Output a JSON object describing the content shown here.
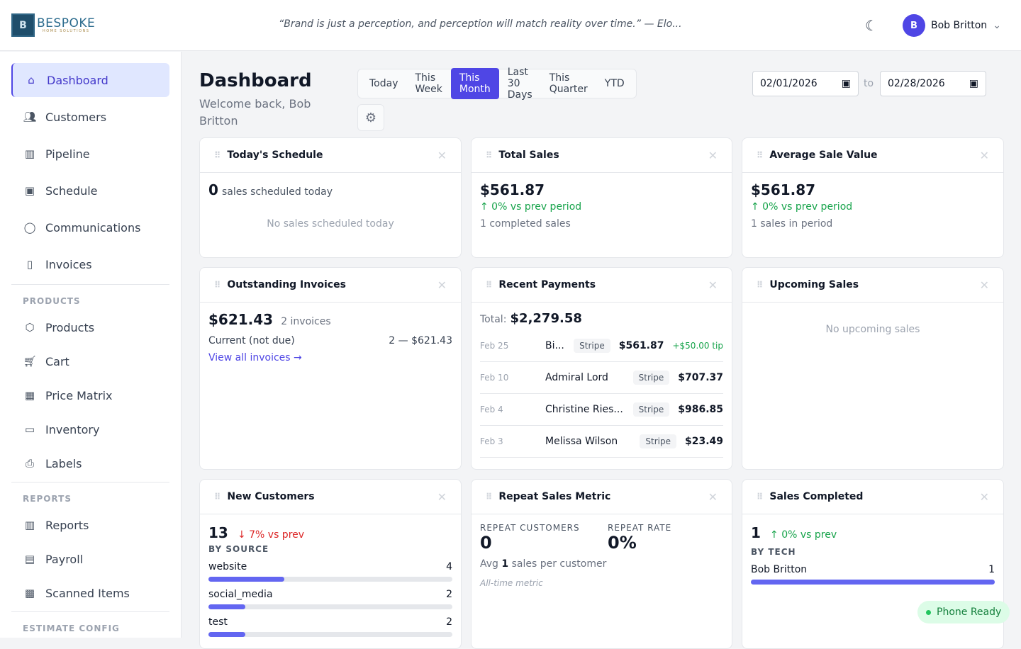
{
  "header": {
    "logo_main": "BESPOKE",
    "logo_sub": "HOME SOLUTIONS",
    "quote": "“Brand is just a perception, and perception will match reality over time.” — Elo...",
    "user_initial": "B",
    "user_name": "Bob Britton"
  },
  "sidebar": {
    "items": [
      "Dashboard",
      "Customers",
      "Pipeline",
      "Schedule",
      "Communications",
      "Invoices"
    ],
    "products_heading": "PRODUCTS",
    "products": [
      "Products",
      "Cart",
      "Price Matrix",
      "Inventory",
      "Labels"
    ],
    "reports_heading": "REPORTS",
    "reports": [
      "Reports",
      "Payroll",
      "Scanned Items"
    ],
    "estimate_heading": "ESTIMATE CONFIG"
  },
  "page": {
    "title": "Dashboard",
    "welcome": "Welcome back, Bob Britton",
    "ranges": [
      "Today",
      "This Week",
      "This Month",
      "Last 30 Days",
      "This Quarter",
      "YTD"
    ],
    "date_from": "02/01/2026",
    "to": "to",
    "date_to": "02/28/2026"
  },
  "schedule": {
    "title": "Today's Schedule",
    "count": "0",
    "count_label": "sales scheduled today",
    "empty": "No sales scheduled today"
  },
  "total_sales": {
    "title": "Total Sales",
    "value": "$561.87",
    "change": "↑ 0% vs prev period",
    "sub": "1 completed sales"
  },
  "avg_sale": {
    "title": "Average Sale Value",
    "value": "$561.87",
    "change": "↑ 0% vs prev period",
    "sub": "1 sales in period"
  },
  "outstanding": {
    "title": "Outstanding Invoices",
    "value": "$621.43",
    "count": "2 invoices",
    "row_label": "Current (not due)",
    "row_value": "2 — $621.43",
    "link": "View all invoices →"
  },
  "payments": {
    "title": "Recent Payments",
    "total_label": "Total:",
    "total": "$2,279.58",
    "rows": [
      {
        "date": "Feb 25",
        "name": "Bi...",
        "method": "Stripe",
        "amount": "$561.87",
        "tip": "+$50.00 tip"
      },
      {
        "date": "Feb 10",
        "name": "Admiral Lord",
        "method": "Stripe",
        "amount": "$707.37"
      },
      {
        "date": "Feb 4",
        "name": "Christine Ries...",
        "method": "Stripe",
        "amount": "$986.85"
      },
      {
        "date": "Feb 3",
        "name": "Melissa Wilson",
        "method": "Stripe",
        "amount": "$23.49"
      }
    ]
  },
  "upcoming": {
    "title": "Upcoming Sales",
    "empty": "No upcoming sales"
  },
  "new_customers": {
    "title": "New Customers",
    "count": "13",
    "change": "↓ 7% vs prev",
    "by_source": "BY SOURCE",
    "sources": [
      {
        "name": "website",
        "count": "4",
        "fraction": 0.31
      },
      {
        "name": "social_media",
        "count": "2",
        "fraction": 0.15
      },
      {
        "name": "test",
        "count": "2",
        "fraction": 0.15
      }
    ]
  },
  "repeat": {
    "title": "Repeat Sales Metric",
    "customers_label": "REPEAT CUSTOMERS",
    "customers": "0",
    "rate_label": "REPEAT RATE",
    "rate": "0%",
    "avg_pre": "Avg",
    "avg": "1",
    "avg_post": "sales per customer",
    "note": "All-time metric"
  },
  "completed": {
    "title": "Sales Completed",
    "count": "1",
    "change": "↑ 0% vs prev",
    "by_tech": "BY TECH",
    "techs": [
      {
        "name": "Bob Britton",
        "count": "1",
        "fraction": 1
      }
    ]
  },
  "status": {
    "phone": "Phone Ready"
  }
}
